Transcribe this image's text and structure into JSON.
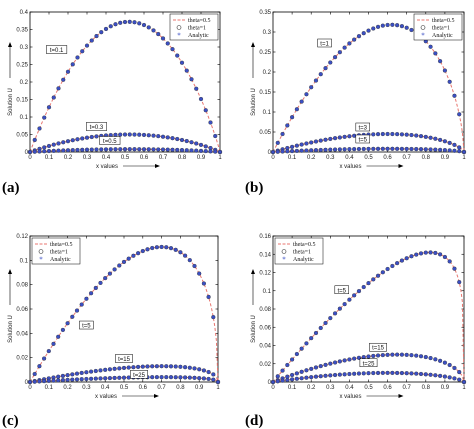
{
  "chart_data": [
    {
      "type": "line",
      "panel_label": "(a)",
      "xlabel": "x values",
      "ylabel": "Solution U",
      "xlim": [
        0,
        1
      ],
      "ylim": [
        0,
        0.4
      ],
      "x_ticks": [
        0,
        0.1,
        0.2,
        0.3,
        0.4,
        0.5,
        0.6,
        0.7,
        0.8,
        0.9,
        1
      ],
      "y_ticks": [
        0,
        0.05,
        0.1,
        0.15,
        0.2,
        0.25,
        0.3,
        0.35,
        0.4
      ],
      "legend": [
        "theta=0.5",
        "theta=1",
        "Analytic"
      ],
      "legend_placement": "top-right",
      "series_colors": {
        "theta=0.5": "#e8766f",
        "theta=1": "#333333",
        "Analytic": "#3b4fc4"
      },
      "curves": [
        {
          "label": "t=0.1",
          "peak_x": 0.52,
          "peak": 0.372
        },
        {
          "label": "t=0.3",
          "peak_x": 0.52,
          "peak": 0.05
        },
        {
          "label": "t=0.5",
          "peak_x": 0.52,
          "peak": 0.008
        }
      ]
    },
    {
      "type": "line",
      "panel_label": "(b)",
      "xlabel": "x values",
      "ylabel": "Solution U",
      "xlim": [
        0,
        1
      ],
      "ylim": [
        0,
        0.35
      ],
      "x_ticks": [
        0,
        0.1,
        0.2,
        0.3,
        0.4,
        0.5,
        0.6,
        0.7,
        0.8,
        0.9,
        1
      ],
      "y_ticks": [
        0,
        0.05,
        0.1,
        0.15,
        0.2,
        0.25,
        0.3,
        0.35
      ],
      "legend": [
        "theta=0.5",
        "theta=1",
        "Analytic"
      ],
      "legend_placement": "top-right",
      "series_colors": {
        "theta=0.5": "#e8766f",
        "theta=1": "#333333",
        "Analytic": "#3b4fc4"
      },
      "curves": [
        {
          "label": "t=1",
          "peak_x": 0.62,
          "peak": 0.318
        },
        {
          "label": "t=3",
          "peak_x": 0.6,
          "peak": 0.045
        },
        {
          "label": "t=5",
          "peak_x": 0.6,
          "peak": 0.008
        }
      ]
    },
    {
      "type": "line",
      "panel_label": "(c)",
      "xlabel": "x values",
      "ylabel": "Solution U",
      "xlim": [
        0,
        1
      ],
      "ylim": [
        0,
        0.12
      ],
      "x_ticks": [
        0,
        0.1,
        0.2,
        0.3,
        0.4,
        0.5,
        0.6,
        0.7,
        0.8,
        0.9,
        1
      ],
      "y_ticks": [
        0,
        0.02,
        0.04,
        0.06,
        0.08,
        0.1,
        0.12
      ],
      "legend": [
        "theta=0.5",
        "theta=1",
        "Analytic"
      ],
      "legend_placement": "top-left",
      "series_colors": {
        "theta=0.5": "#e8766f",
        "theta=1": "#333333",
        "Analytic": "#3b4fc4"
      },
      "curves": [
        {
          "label": "t=5",
          "peak_x": 0.7,
          "peak": 0.111
        },
        {
          "label": "t=15",
          "peak_x": 0.7,
          "peak": 0.013
        },
        {
          "label": "t=25",
          "peak_x": 0.7,
          "peak": 0.004
        }
      ]
    },
    {
      "type": "line",
      "panel_label": "(d)",
      "xlabel": "x values",
      "ylabel": "Solution U",
      "xlim": [
        0,
        1
      ],
      "ylim": [
        0,
        0.16
      ],
      "x_ticks": [
        0,
        0.1,
        0.2,
        0.3,
        0.4,
        0.5,
        0.6,
        0.7,
        0.8,
        0.9,
        1
      ],
      "y_ticks": [
        0,
        0.02,
        0.04,
        0.06,
        0.08,
        0.1,
        0.12,
        0.14,
        0.16
      ],
      "legend": [
        "theta=0.5",
        "theta=1",
        "Analytic"
      ],
      "legend_placement": "top-left",
      "series_colors": {
        "theta=0.5": "#e8766f",
        "theta=1": "#333333",
        "Analytic": "#3b4fc4"
      },
      "curves": [
        {
          "label": "t=5",
          "peak_x": 0.82,
          "peak": 0.142
        },
        {
          "label": "t=15",
          "peak_x": 0.65,
          "peak": 0.03
        },
        {
          "label": "t=25",
          "peak_x": 0.6,
          "peak": 0.01
        }
      ]
    }
  ]
}
